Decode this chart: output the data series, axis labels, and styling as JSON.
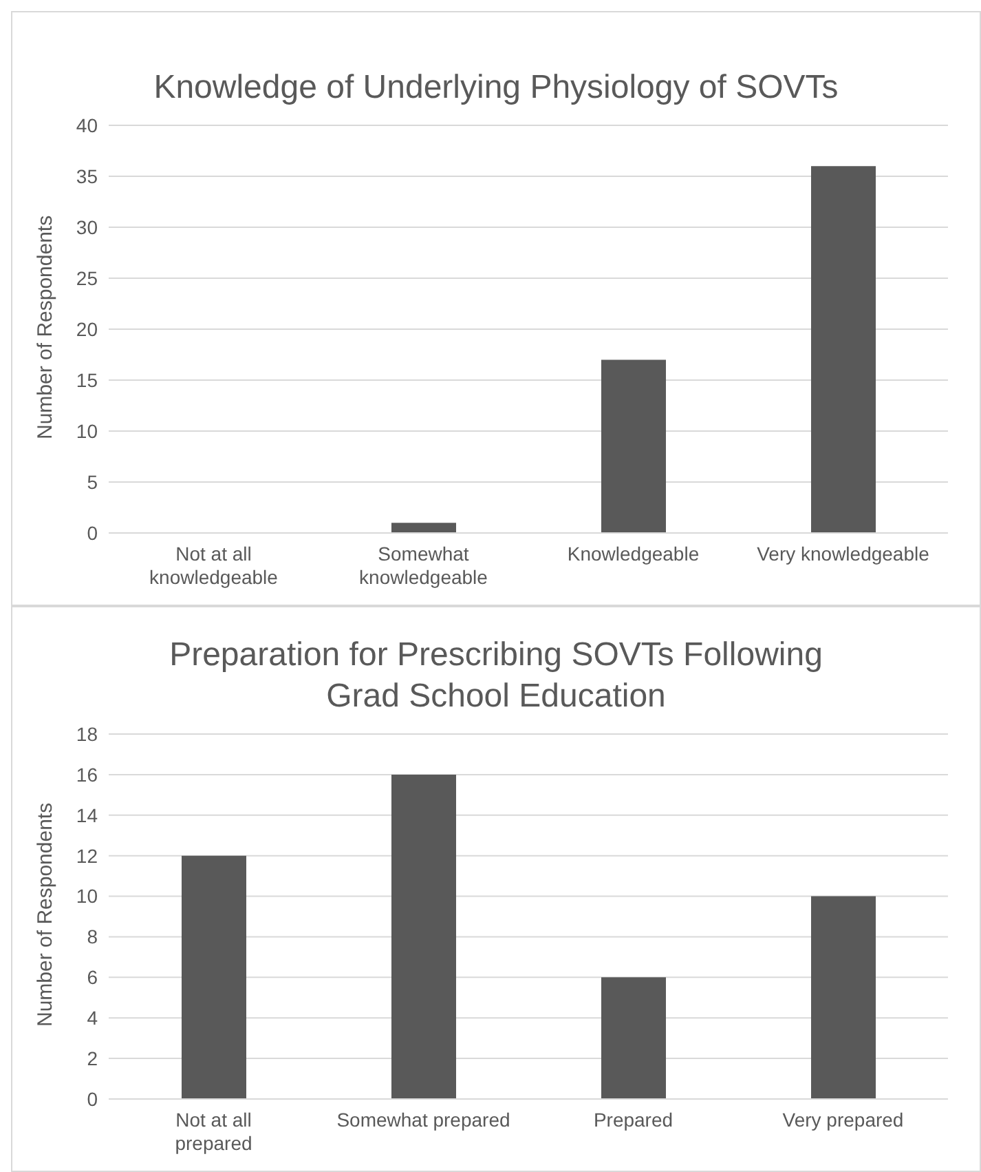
{
  "chart_data": [
    {
      "type": "bar",
      "title": "Knowledge of Underlying Physiology of SOVTs",
      "ylabel": "Number of Respondents",
      "categories": [
        "Not at all knowledgeable",
        "Somewhat knowledgeable",
        "Knowledgeable",
        "Very knowledgeable"
      ],
      "values": [
        0,
        1,
        17,
        36
      ],
      "color": "#595959",
      "ylim": [
        0,
        40
      ],
      "yticks": [
        0,
        5,
        10,
        15,
        20,
        25,
        30,
        35,
        40
      ],
      "grid": "y"
    },
    {
      "type": "bar",
      "title": "Preparation for Prescribing SOVTs Following Grad School Education",
      "ylabel": "Number of Respondents",
      "categories": [
        "Not at all prepared",
        "Somewhat prepared",
        "Prepared",
        "Very prepared"
      ],
      "values": [
        12,
        16,
        6,
        10
      ],
      "color": "#595959",
      "ylim": [
        0,
        18
      ],
      "yticks": [
        0,
        2,
        4,
        6,
        8,
        10,
        12,
        14,
        16,
        18
      ],
      "grid": "y"
    }
  ]
}
